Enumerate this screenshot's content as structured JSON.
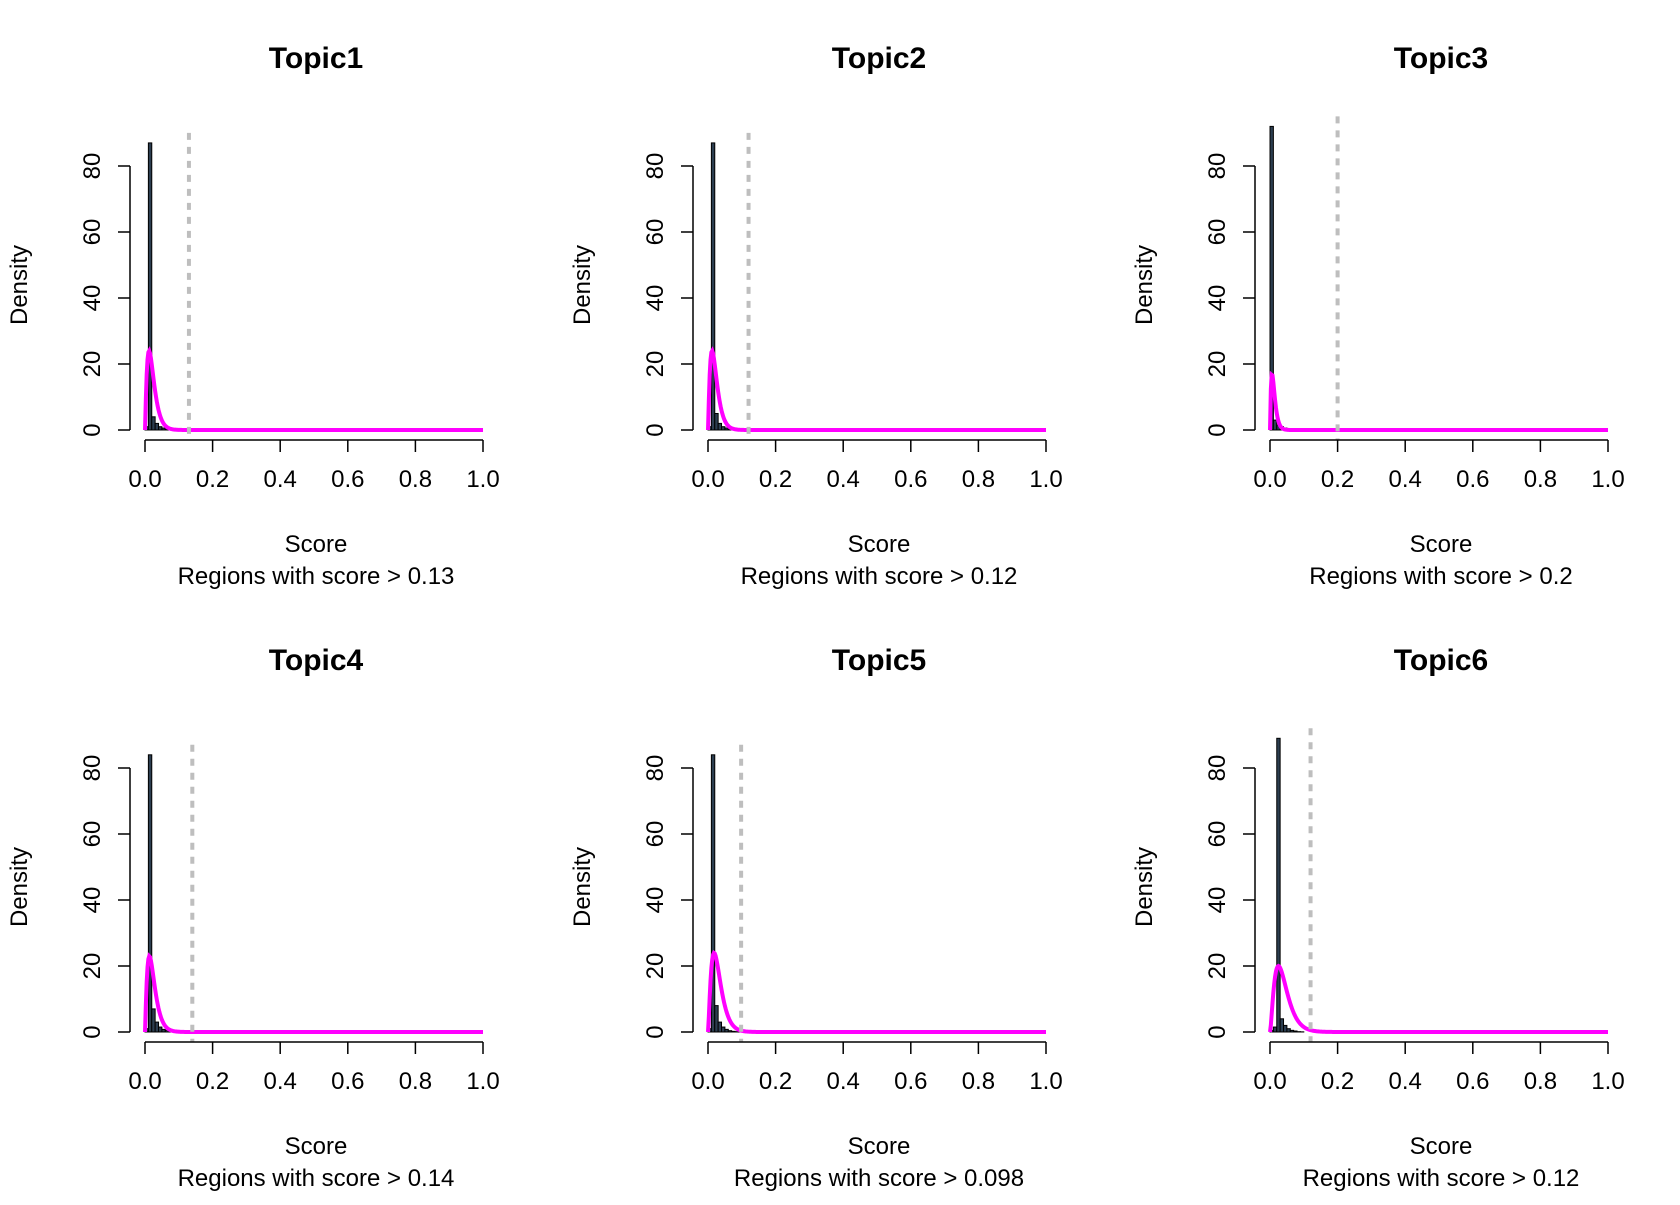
{
  "colors": {
    "bar_fill": "#2c3e50",
    "bar_stroke": "#000000",
    "density_curve": "#ff00ff",
    "threshold_line": "#bebebe"
  },
  "chart_data": [
    {
      "type": "histogram",
      "title": "Topic1",
      "xlabel": "Score",
      "subtitle": "Regions with score > 0.13",
      "ylabel": "Density",
      "xlim": [
        0,
        1
      ],
      "ylim": [
        0,
        87
      ],
      "x_ticks": [
        "0.0",
        "0.2",
        "0.4",
        "0.6",
        "0.8",
        "1.0"
      ],
      "y_ticks": [
        "0",
        "20",
        "40",
        "60",
        "80"
      ],
      "threshold": 0.13,
      "bins": [
        0.0,
        0.01,
        0.02,
        0.03,
        0.04,
        0.05,
        0.06,
        0.07,
        0.08,
        0.09,
        0.1
      ],
      "bar_heights": [
        1,
        87,
        4,
        2,
        1,
        0.6,
        0.4,
        0.2,
        0.1,
        0.05
      ],
      "curve": {
        "peak_x": 0.012,
        "peak_y": 24,
        "decay": 18
      }
    },
    {
      "type": "histogram",
      "title": "Topic2",
      "xlabel": "Score",
      "subtitle": "Regions with score > 0.12",
      "ylabel": "Density",
      "xlim": [
        0,
        1
      ],
      "ylim": [
        0,
        87
      ],
      "x_ticks": [
        "0.0",
        "0.2",
        "0.4",
        "0.6",
        "0.8",
        "1.0"
      ],
      "y_ticks": [
        "0",
        "20",
        "40",
        "60",
        "80"
      ],
      "threshold": 0.12,
      "bins": [
        0.0,
        0.01,
        0.02,
        0.03,
        0.04,
        0.05,
        0.06,
        0.07,
        0.08,
        0.09,
        0.1
      ],
      "bar_heights": [
        1,
        87,
        5,
        2,
        1,
        0.6,
        0.4,
        0.2,
        0.1,
        0.05
      ],
      "curve": {
        "peak_x": 0.012,
        "peak_y": 24,
        "decay": 20
      }
    },
    {
      "type": "histogram",
      "title": "Topic3",
      "xlabel": "Score",
      "subtitle": "Regions with score > 0.2",
      "ylabel": "Density",
      "xlim": [
        0,
        1
      ],
      "ylim": [
        0,
        92
      ],
      "x_ticks": [
        "0.0",
        "0.2",
        "0.4",
        "0.6",
        "0.8",
        "1.0"
      ],
      "y_ticks": [
        "0",
        "20",
        "40",
        "60",
        "80"
      ],
      "threshold": 0.2,
      "bins": [
        0.0,
        0.01,
        0.02,
        0.03,
        0.04,
        0.05,
        0.06,
        0.07,
        0.08,
        0.09,
        0.1
      ],
      "bar_heights": [
        92,
        3,
        1.5,
        1,
        0.6,
        0.4,
        0.3,
        0.2,
        0.1,
        0.05
      ],
      "curve": {
        "peak_x": 0.006,
        "peak_y": 17,
        "decay": 12
      }
    },
    {
      "type": "histogram",
      "title": "Topic4",
      "xlabel": "Score",
      "subtitle": "Regions with score > 0.14",
      "ylabel": "Density",
      "xlim": [
        0,
        1
      ],
      "ylim": [
        0,
        84
      ],
      "x_ticks": [
        "0.0",
        "0.2",
        "0.4",
        "0.6",
        "0.8",
        "1.0"
      ],
      "y_ticks": [
        "0",
        "20",
        "40",
        "60",
        "80"
      ],
      "threshold": 0.14,
      "bins": [
        0.0,
        0.01,
        0.02,
        0.03,
        0.04,
        0.05,
        0.06,
        0.07,
        0.08,
        0.09,
        0.1
      ],
      "bar_heights": [
        1,
        84,
        7,
        3,
        1.5,
        0.8,
        0.5,
        0.3,
        0.1,
        0.05
      ],
      "curve": {
        "peak_x": 0.013,
        "peak_y": 23,
        "decay": 17
      }
    },
    {
      "type": "histogram",
      "title": "Topic5",
      "xlabel": "Score",
      "subtitle": "Regions with score > 0.098",
      "ylabel": "Density",
      "xlim": [
        0,
        1
      ],
      "ylim": [
        0,
        84
      ],
      "x_ticks": [
        "0.0",
        "0.2",
        "0.4",
        "0.6",
        "0.8",
        "1.0"
      ],
      "y_ticks": [
        "0",
        "20",
        "40",
        "60",
        "80"
      ],
      "threshold": 0.098,
      "bins": [
        0.0,
        0.01,
        0.02,
        0.03,
        0.04,
        0.05,
        0.06,
        0.07,
        0.08,
        0.09,
        0.1
      ],
      "bar_heights": [
        1,
        84,
        8,
        3,
        1.5,
        0.8,
        0.4,
        0.2,
        0.1,
        0.05
      ],
      "curve": {
        "peak_x": 0.018,
        "peak_y": 24,
        "decay": 26
      }
    },
    {
      "type": "histogram",
      "title": "Topic6",
      "xlabel": "Score",
      "subtitle": "Regions with score > 0.12",
      "ylabel": "Density",
      "xlim": [
        0,
        1
      ],
      "ylim": [
        0,
        89
      ],
      "x_ticks": [
        "0.0",
        "0.2",
        "0.4",
        "0.6",
        "0.8",
        "1.0"
      ],
      "y_ticks": [
        "0",
        "20",
        "40",
        "60",
        "80"
      ],
      "threshold": 0.12,
      "bins": [
        0.0,
        0.01,
        0.02,
        0.03,
        0.04,
        0.05,
        0.06,
        0.07,
        0.08,
        0.09,
        0.1
      ],
      "bar_heights": [
        0.5,
        1.5,
        89,
        4,
        2,
        1,
        0.5,
        0.3,
        0.1,
        0.05
      ],
      "curve": {
        "peak_x": 0.025,
        "peak_y": 20,
        "decay": 24
      }
    }
  ]
}
